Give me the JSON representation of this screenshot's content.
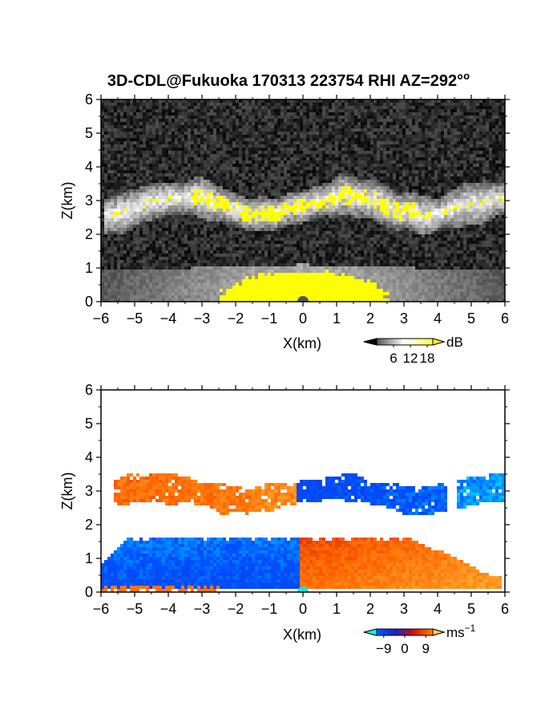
{
  "figure": {
    "title": "3D-CDL@Fukuoka 170313 223754 RHI AZ=292°",
    "title_superscript": "o"
  },
  "chart_data": [
    {
      "type": "heatmap",
      "name": "reflectivity",
      "xlabel": "X(km)",
      "ylabel": "Z(km)",
      "xlim": [
        -6,
        6
      ],
      "ylim": [
        0,
        6
      ],
      "xticks": [
        -6,
        -5,
        -4,
        -3,
        -2,
        -1,
        0,
        1,
        2,
        3,
        4,
        5,
        6
      ],
      "yticks": [
        0,
        1,
        2,
        3,
        4,
        5,
        6
      ],
      "colorbar": {
        "unit": "dB",
        "ticks": [
          6,
          12,
          18
        ],
        "range": [
          0,
          20
        ],
        "colors": [
          "#000000",
          "#ffffff",
          "#ffff00"
        ]
      },
      "features": [
        {
          "kind": "cloud-layer",
          "x": [
            -5.9,
            6.0
          ],
          "z_base": 2.4,
          "z_top": 3.4,
          "dB": 14
        },
        {
          "kind": "cloud-core",
          "x": [
            -3.2,
            3.3
          ],
          "z_center": 2.9,
          "dB": 19
        },
        {
          "kind": "boundary-layer",
          "x": [
            -6.0,
            6.0
          ],
          "z_top": 1.1,
          "dB": 12
        },
        {
          "kind": "near-field",
          "x": [
            -2.6,
            2.2
          ],
          "z_top": 0.9,
          "dB": 19
        },
        {
          "kind": "background",
          "dB": 3
        }
      ]
    },
    {
      "type": "heatmap",
      "name": "doppler-velocity",
      "xlabel": "X(km)",
      "ylabel": "Z(km)",
      "xlim": [
        -6,
        6
      ],
      "ylim": [
        0,
        6
      ],
      "xticks": [
        -6,
        -5,
        -4,
        -3,
        -2,
        -1,
        0,
        1,
        2,
        3,
        4,
        5,
        6
      ],
      "yticks": [
        0,
        1,
        2,
        3,
        4,
        5,
        6
      ],
      "colorbar": {
        "unit": "ms",
        "unit_superscript": "−1",
        "ticks": [
          -9,
          0,
          9
        ],
        "tick_labels": [
          "−9",
          "0",
          "9"
        ],
        "range": [
          -12,
          12
        ],
        "colors": [
          "#00ffff",
          "#0050ff",
          "#2020c0",
          "#c01010",
          "#ff6000",
          "#ffd040"
        ]
      },
      "features": [
        {
          "kind": "cloud-layer",
          "x": [
            -5.6,
            -0.2
          ],
          "z_base": 2.5,
          "z_top": 3.4,
          "velocity": 6
        },
        {
          "kind": "cloud-layer",
          "x": [
            -0.2,
            4.3
          ],
          "z_base": 2.6,
          "z_top": 3.5,
          "velocity": -6
        },
        {
          "kind": "cloud-layer",
          "x": [
            4.6,
            6.0
          ],
          "z_base": 2.3,
          "z_top": 3.3,
          "velocity": -9
        },
        {
          "kind": "boundary-layer",
          "x": [
            -6.0,
            -0.1
          ],
          "z_top": 1.6,
          "velocity": -7
        },
        {
          "kind": "boundary-layer",
          "x": [
            -0.1,
            5.9
          ],
          "z_top": 1.6,
          "velocity": 6
        }
      ]
    }
  ]
}
